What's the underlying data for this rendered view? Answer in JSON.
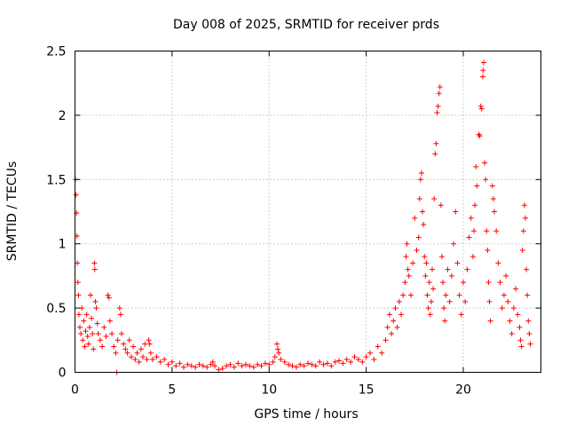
{
  "chart_data": {
    "type": "scatter",
    "title": "Day 008 of 2025, SRMTID for receiver prds",
    "xlabel": "GPS time / hours",
    "ylabel": "SRMTID / TECUs",
    "xlim": [
      0,
      24
    ],
    "ylim": [
      0,
      2.5
    ],
    "xticks": [
      0,
      5,
      10,
      15,
      20
    ],
    "xtick_labels": [
      "0",
      "5",
      "10",
      "15",
      "20"
    ],
    "yticks": [
      0,
      0.5,
      1,
      1.5,
      2,
      2.5
    ],
    "ytick_labels": [
      "0",
      "0.5",
      "1",
      "1.5",
      "2",
      "2.5"
    ],
    "grid": true,
    "marker": "+",
    "color": "#ff0000",
    "series": [
      {
        "name": "SRMTID",
        "points": [
          [
            0.02,
            1.5
          ],
          [
            0.05,
            1.38
          ],
          [
            0.08,
            1.24
          ],
          [
            0.1,
            1.06
          ],
          [
            0.12,
            0.85
          ],
          [
            0.15,
            0.7
          ],
          [
            0.18,
            0.6
          ],
          [
            0.2,
            0.45
          ],
          [
            0.25,
            0.35
          ],
          [
            0.3,
            0.3
          ],
          [
            0.35,
            0.5
          ],
          [
            0.4,
            0.25
          ],
          [
            0.45,
            0.4
          ],
          [
            0.5,
            0.2
          ],
          [
            0.55,
            0.32
          ],
          [
            0.6,
            0.45
          ],
          [
            0.65,
            0.28
          ],
          [
            0.7,
            0.22
          ],
          [
            0.75,
            0.35
          ],
          [
            0.8,
            0.6
          ],
          [
            0.85,
            0.42
          ],
          [
            0.9,
            0.3
          ],
          [
            0.95,
            0.18
          ],
          [
            1.0,
            0.85
          ],
          [
            1.02,
            0.8
          ],
          [
            1.05,
            0.55
          ],
          [
            1.1,
            0.5
          ],
          [
            1.15,
            0.38
          ],
          [
            1.2,
            0.3
          ],
          [
            1.3,
            0.25
          ],
          [
            1.4,
            0.2
          ],
          [
            1.5,
            0.35
          ],
          [
            1.6,
            0.28
          ],
          [
            1.7,
            0.6
          ],
          [
            1.75,
            0.58
          ],
          [
            1.8,
            0.4
          ],
          [
            1.9,
            0.3
          ],
          [
            2.0,
            0.2
          ],
          [
            2.1,
            0.15
          ],
          [
            2.15,
            0.0
          ],
          [
            2.2,
            0.25
          ],
          [
            2.3,
            0.5
          ],
          [
            2.35,
            0.45
          ],
          [
            2.4,
            0.3
          ],
          [
            2.5,
            0.22
          ],
          [
            2.6,
            0.18
          ],
          [
            2.7,
            0.15
          ],
          [
            2.8,
            0.25
          ],
          [
            2.9,
            0.12
          ],
          [
            3.0,
            0.2
          ],
          [
            3.1,
            0.1
          ],
          [
            3.2,
            0.15
          ],
          [
            3.3,
            0.08
          ],
          [
            3.4,
            0.18
          ],
          [
            3.5,
            0.12
          ],
          [
            3.6,
            0.22
          ],
          [
            3.7,
            0.1
          ],
          [
            3.8,
            0.25
          ],
          [
            3.85,
            0.22
          ],
          [
            3.9,
            0.15
          ],
          [
            4.0,
            0.1
          ],
          [
            4.2,
            0.12
          ],
          [
            4.4,
            0.08
          ],
          [
            4.6,
            0.1
          ],
          [
            4.8,
            0.06
          ],
          [
            5.0,
            0.08
          ],
          [
            5.2,
            0.05
          ],
          [
            5.4,
            0.07
          ],
          [
            5.6,
            0.04
          ],
          [
            5.8,
            0.06
          ],
          [
            6.0,
            0.05
          ],
          [
            6.2,
            0.04
          ],
          [
            6.4,
            0.06
          ],
          [
            6.6,
            0.05
          ],
          [
            6.8,
            0.04
          ],
          [
            7.0,
            0.06
          ],
          [
            7.1,
            0.08
          ],
          [
            7.2,
            0.05
          ],
          [
            7.4,
            0.02
          ],
          [
            7.6,
            0.03
          ],
          [
            7.8,
            0.05
          ],
          [
            8.0,
            0.06
          ],
          [
            8.2,
            0.04
          ],
          [
            8.4,
            0.07
          ],
          [
            8.6,
            0.05
          ],
          [
            8.8,
            0.06
          ],
          [
            9.0,
            0.05
          ],
          [
            9.2,
            0.04
          ],
          [
            9.4,
            0.06
          ],
          [
            9.6,
            0.05
          ],
          [
            9.8,
            0.07
          ],
          [
            10.0,
            0.06
          ],
          [
            10.2,
            0.08
          ],
          [
            10.3,
            0.12
          ],
          [
            10.4,
            0.22
          ],
          [
            10.45,
            0.18
          ],
          [
            10.5,
            0.15
          ],
          [
            10.6,
            0.1
          ],
          [
            10.8,
            0.08
          ],
          [
            11.0,
            0.06
          ],
          [
            11.2,
            0.05
          ],
          [
            11.4,
            0.04
          ],
          [
            11.6,
            0.06
          ],
          [
            11.8,
            0.05
          ],
          [
            12.0,
            0.07
          ],
          [
            12.2,
            0.06
          ],
          [
            12.4,
            0.05
          ],
          [
            12.6,
            0.08
          ],
          [
            12.8,
            0.06
          ],
          [
            13.0,
            0.07
          ],
          [
            13.2,
            0.05
          ],
          [
            13.4,
            0.08
          ],
          [
            13.6,
            0.09
          ],
          [
            13.8,
            0.07
          ],
          [
            14.0,
            0.1
          ],
          [
            14.2,
            0.08
          ],
          [
            14.4,
            0.12
          ],
          [
            14.6,
            0.1
          ],
          [
            14.8,
            0.08
          ],
          [
            15.0,
            0.12
          ],
          [
            15.2,
            0.15
          ],
          [
            15.4,
            0.1
          ],
          [
            15.6,
            0.2
          ],
          [
            15.8,
            0.15
          ],
          [
            16.0,
            0.25
          ],
          [
            16.1,
            0.35
          ],
          [
            16.2,
            0.45
          ],
          [
            16.3,
            0.3
          ],
          [
            16.4,
            0.4
          ],
          [
            16.5,
            0.5
          ],
          [
            16.6,
            0.35
          ],
          [
            16.7,
            0.55
          ],
          [
            16.8,
            0.45
          ],
          [
            16.9,
            0.6
          ],
          [
            17.0,
            0.7
          ],
          [
            17.05,
            0.9
          ],
          [
            17.1,
            1.0
          ],
          [
            17.15,
            0.8
          ],
          [
            17.2,
            0.75
          ],
          [
            17.3,
            0.6
          ],
          [
            17.4,
            0.85
          ],
          [
            17.5,
            1.2
          ],
          [
            17.6,
            0.95
          ],
          [
            17.7,
            1.05
          ],
          [
            17.75,
            1.35
          ],
          [
            17.8,
            1.5
          ],
          [
            17.85,
            1.55
          ],
          [
            17.9,
            1.25
          ],
          [
            17.95,
            1.15
          ],
          [
            18.0,
            0.9
          ],
          [
            18.05,
            0.75
          ],
          [
            18.1,
            0.85
          ],
          [
            18.15,
            0.6
          ],
          [
            18.2,
            0.5
          ],
          [
            18.25,
            0.7
          ],
          [
            18.3,
            0.45
          ],
          [
            18.35,
            0.55
          ],
          [
            18.4,
            0.8
          ],
          [
            18.45,
            0.65
          ],
          [
            18.5,
            1.35
          ],
          [
            18.55,
            1.7
          ],
          [
            18.6,
            1.78
          ],
          [
            18.65,
            2.02
          ],
          [
            18.7,
            2.07
          ],
          [
            18.75,
            2.17
          ],
          [
            18.8,
            2.22
          ],
          [
            18.85,
            1.3
          ],
          [
            18.9,
            0.9
          ],
          [
            18.95,
            0.7
          ],
          [
            19.0,
            0.5
          ],
          [
            19.05,
            0.4
          ],
          [
            19.1,
            0.6
          ],
          [
            19.2,
            0.8
          ],
          [
            19.3,
            0.55
          ],
          [
            19.4,
            0.75
          ],
          [
            19.5,
            1.0
          ],
          [
            19.6,
            1.25
          ],
          [
            19.7,
            0.85
          ],
          [
            19.8,
            0.6
          ],
          [
            19.9,
            0.45
          ],
          [
            20.0,
            0.7
          ],
          [
            20.1,
            0.55
          ],
          [
            20.2,
            0.8
          ],
          [
            20.3,
            1.05
          ],
          [
            20.4,
            1.2
          ],
          [
            20.5,
            0.9
          ],
          [
            20.55,
            1.1
          ],
          [
            20.6,
            1.3
          ],
          [
            20.65,
            1.6
          ],
          [
            20.7,
            1.45
          ],
          [
            20.8,
            1.85
          ],
          [
            20.85,
            1.84
          ],
          [
            20.9,
            2.07
          ],
          [
            20.95,
            2.05
          ],
          [
            21.0,
            2.3
          ],
          [
            21.02,
            2.35
          ],
          [
            21.05,
            2.41
          ],
          [
            21.1,
            1.63
          ],
          [
            21.15,
            1.5
          ],
          [
            21.2,
            1.1
          ],
          [
            21.25,
            0.95
          ],
          [
            21.3,
            0.7
          ],
          [
            21.35,
            0.55
          ],
          [
            21.4,
            0.4
          ],
          [
            21.5,
            1.45
          ],
          [
            21.55,
            1.35
          ],
          [
            21.6,
            1.25
          ],
          [
            21.7,
            1.1
          ],
          [
            21.8,
            0.85
          ],
          [
            21.9,
            0.7
          ],
          [
            22.0,
            0.5
          ],
          [
            22.1,
            0.6
          ],
          [
            22.2,
            0.75
          ],
          [
            22.3,
            0.55
          ],
          [
            22.4,
            0.4
          ],
          [
            22.5,
            0.3
          ],
          [
            22.6,
            0.5
          ],
          [
            22.7,
            0.65
          ],
          [
            22.8,
            0.45
          ],
          [
            22.9,
            0.35
          ],
          [
            22.95,
            0.25
          ],
          [
            23.0,
            0.2
          ],
          [
            23.05,
            0.95
          ],
          [
            23.1,
            1.1
          ],
          [
            23.15,
            1.3
          ],
          [
            23.2,
            1.2
          ],
          [
            23.25,
            0.8
          ],
          [
            23.3,
            0.6
          ],
          [
            23.35,
            0.4
          ],
          [
            23.4,
            0.3
          ],
          [
            23.45,
            0.22
          ]
        ]
      }
    ]
  }
}
